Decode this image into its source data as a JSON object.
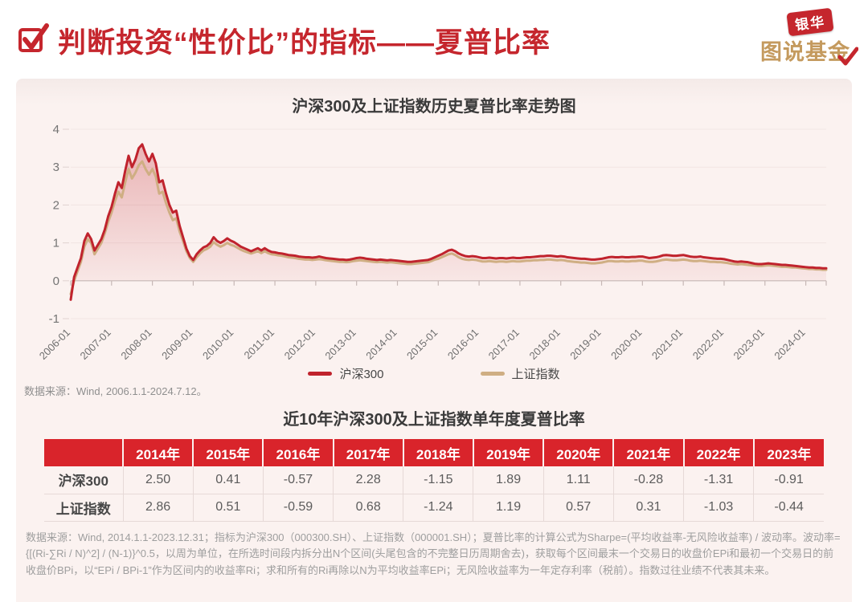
{
  "header": {
    "title": "判断投资“性价比”的指标——夏普比率",
    "logo": {
      "top": "银华",
      "bottom": "图说基金"
    }
  },
  "colors": {
    "accent_red": "#c5262d",
    "table_header_red": "#d9242b",
    "line_red": "#c0232d",
    "line_tan": "#cfae83",
    "panel_bg": "#fbf2f0",
    "logo_gold": "#c49a5e",
    "grid": "#f1e5e3",
    "axis": "#c6b7b5"
  },
  "chart": {
    "title": "沪深300及上证指数历史夏普比率走势图",
    "source": "数据来源：Wind, 2006.1.1-2024.7.12。",
    "legend": [
      {
        "label": "沪深300",
        "color": "#c0232d"
      },
      {
        "label": "上证指数",
        "color": "#cfae83"
      }
    ]
  },
  "chart_data": [
    {
      "type": "line",
      "title": "沪深300及上证指数历史夏普比率走势图",
      "xlabel": "",
      "ylabel": "",
      "x_unit": "month",
      "x_range": [
        "2006-01",
        "2024-07"
      ],
      "x_tick_labels": [
        "2006-01",
        "2007-01",
        "2008-01",
        "2009-01",
        "2010-01",
        "2011-01",
        "2012-01",
        "2013-01",
        "2014-01",
        "2015-01",
        "2016-01",
        "2017-01",
        "2018-01",
        "2019-01",
        "2020-01",
        "2021-01",
        "2022-01",
        "2023-01",
        "2024-01"
      ],
      "ylim": [
        -1,
        4
      ],
      "y_ticks": [
        4,
        3,
        2,
        1,
        0,
        -1
      ],
      "grid": true,
      "legend_position": "bottom",
      "series": [
        {
          "name": "沪深300",
          "color": "#c0232d",
          "area": true,
          "values": [
            -0.5,
            0.1,
            0.35,
            0.6,
            1.05,
            1.25,
            1.1,
            0.8,
            0.95,
            1.1,
            1.35,
            1.7,
            1.95,
            2.3,
            2.6,
            2.45,
            2.9,
            3.3,
            3.0,
            3.2,
            3.5,
            3.6,
            3.35,
            3.15,
            3.35,
            3.1,
            2.6,
            2.65,
            2.3,
            2.0,
            1.8,
            1.85,
            1.45,
            1.15,
            0.85,
            0.65,
            0.55,
            0.7,
            0.8,
            0.88,
            0.92,
            1.0,
            1.15,
            1.05,
            1.0,
            1.05,
            1.12,
            1.06,
            1.02,
            0.96,
            0.9,
            0.86,
            0.82,
            0.78,
            0.82,
            0.86,
            0.8,
            0.86,
            0.8,
            0.76,
            0.75,
            0.73,
            0.72,
            0.7,
            0.68,
            0.67,
            0.66,
            0.64,
            0.63,
            0.62,
            0.62,
            0.61,
            0.62,
            0.64,
            0.62,
            0.6,
            0.59,
            0.58,
            0.57,
            0.56,
            0.56,
            0.55,
            0.56,
            0.58,
            0.6,
            0.61,
            0.6,
            0.58,
            0.57,
            0.56,
            0.55,
            0.56,
            0.55,
            0.54,
            0.55,
            0.54,
            0.53,
            0.52,
            0.51,
            0.5,
            0.5,
            0.51,
            0.52,
            0.53,
            0.54,
            0.55,
            0.58,
            0.62,
            0.66,
            0.7,
            0.75,
            0.8,
            0.82,
            0.78,
            0.72,
            0.68,
            0.65,
            0.64,
            0.65,
            0.64,
            0.62,
            0.6,
            0.6,
            0.61,
            0.6,
            0.59,
            0.6,
            0.6,
            0.59,
            0.6,
            0.61,
            0.6,
            0.6,
            0.61,
            0.62,
            0.62,
            0.63,
            0.64,
            0.65,
            0.65,
            0.66,
            0.66,
            0.65,
            0.64,
            0.65,
            0.64,
            0.62,
            0.61,
            0.6,
            0.59,
            0.58,
            0.58,
            0.57,
            0.56,
            0.56,
            0.57,
            0.58,
            0.6,
            0.62,
            0.63,
            0.62,
            0.62,
            0.63,
            0.62,
            0.62,
            0.63,
            0.63,
            0.64,
            0.64,
            0.62,
            0.6,
            0.61,
            0.62,
            0.64,
            0.67,
            0.68,
            0.67,
            0.66,
            0.66,
            0.67,
            0.68,
            0.66,
            0.64,
            0.63,
            0.63,
            0.64,
            0.62,
            0.61,
            0.6,
            0.59,
            0.58,
            0.58,
            0.57,
            0.55,
            0.53,
            0.51,
            0.5,
            0.51,
            0.5,
            0.49,
            0.47,
            0.45,
            0.44,
            0.44,
            0.45,
            0.46,
            0.45,
            0.44,
            0.43,
            0.42,
            0.42,
            0.41,
            0.4,
            0.39,
            0.38,
            0.37,
            0.36,
            0.35,
            0.35,
            0.34,
            0.34,
            0.33,
            0.33
          ]
        },
        {
          "name": "上证指数",
          "color": "#cfae83",
          "area": false,
          "values": [
            -0.35,
            0.0,
            0.25,
            0.5,
            0.9,
            1.1,
            1.0,
            0.7,
            0.85,
            1.0,
            1.25,
            1.55,
            1.8,
            2.1,
            2.35,
            2.2,
            2.6,
            2.95,
            2.7,
            2.85,
            3.05,
            3.15,
            2.95,
            2.8,
            2.95,
            2.75,
            2.3,
            2.35,
            2.05,
            1.8,
            1.6,
            1.65,
            1.3,
            1.05,
            0.78,
            0.6,
            0.5,
            0.62,
            0.72,
            0.8,
            0.84,
            0.9,
            1.02,
            0.95,
            0.9,
            0.94,
            1.0,
            0.95,
            0.92,
            0.87,
            0.82,
            0.78,
            0.75,
            0.72,
            0.75,
            0.78,
            0.73,
            0.78,
            0.73,
            0.7,
            0.69,
            0.67,
            0.66,
            0.64,
            0.62,
            0.61,
            0.6,
            0.58,
            0.57,
            0.56,
            0.56,
            0.55,
            0.56,
            0.57,
            0.56,
            0.54,
            0.53,
            0.52,
            0.51,
            0.5,
            0.5,
            0.49,
            0.5,
            0.52,
            0.53,
            0.54,
            0.53,
            0.52,
            0.51,
            0.5,
            0.49,
            0.5,
            0.49,
            0.48,
            0.49,
            0.48,
            0.47,
            0.46,
            0.45,
            0.44,
            0.44,
            0.45,
            0.46,
            0.47,
            0.48,
            0.49,
            0.52,
            0.56,
            0.58,
            0.62,
            0.66,
            0.7,
            0.72,
            0.68,
            0.62,
            0.58,
            0.56,
            0.55,
            0.56,
            0.55,
            0.53,
            0.51,
            0.51,
            0.52,
            0.51,
            0.5,
            0.51,
            0.51,
            0.5,
            0.51,
            0.52,
            0.51,
            0.51,
            0.52,
            0.53,
            0.53,
            0.54,
            0.54,
            0.55,
            0.55,
            0.56,
            0.56,
            0.55,
            0.54,
            0.55,
            0.54,
            0.52,
            0.51,
            0.5,
            0.49,
            0.48,
            0.48,
            0.47,
            0.46,
            0.46,
            0.47,
            0.48,
            0.5,
            0.52,
            0.52,
            0.51,
            0.51,
            0.52,
            0.51,
            0.51,
            0.52,
            0.52,
            0.53,
            0.53,
            0.51,
            0.5,
            0.5,
            0.51,
            0.53,
            0.55,
            0.56,
            0.55,
            0.54,
            0.54,
            0.55,
            0.56,
            0.55,
            0.53,
            0.52,
            0.52,
            0.53,
            0.52,
            0.51,
            0.5,
            0.5,
            0.49,
            0.49,
            0.48,
            0.47,
            0.45,
            0.44,
            0.43,
            0.44,
            0.43,
            0.42,
            0.41,
            0.4,
            0.39,
            0.39,
            0.4,
            0.41,
            0.4,
            0.39,
            0.38,
            0.37,
            0.37,
            0.36,
            0.35,
            0.35,
            0.34,
            0.33,
            0.32,
            0.31,
            0.31,
            0.3,
            0.3,
            0.29,
            0.29
          ]
        }
      ]
    },
    {
      "type": "table",
      "title": "近10年沪深300及上证指数单年度夏普比率",
      "categories": [
        "2014年",
        "2015年",
        "2016年",
        "2017年",
        "2018年",
        "2019年",
        "2020年",
        "2021年",
        "2022年",
        "2023年"
      ],
      "series": [
        {
          "name": "沪深300",
          "values": [
            2.5,
            0.41,
            -0.57,
            2.28,
            -1.15,
            1.89,
            1.11,
            -0.28,
            -1.31,
            -0.91
          ]
        },
        {
          "name": "上证指数",
          "values": [
            2.86,
            0.51,
            -0.59,
            0.68,
            -1.24,
            1.19,
            0.57,
            0.31,
            -1.03,
            -0.44
          ]
        }
      ]
    }
  ],
  "table": {
    "title": "近10年沪深300及上证指数单年度夏普比率",
    "columns": [
      "2014年",
      "2015年",
      "2016年",
      "2017年",
      "2018年",
      "2019年",
      "2020年",
      "2021年",
      "2022年",
      "2023年"
    ],
    "rows": [
      {
        "label": "沪深300",
        "values": [
          "2.50",
          "0.41",
          "-0.57",
          "2.28",
          "-1.15",
          "1.89",
          "1.11",
          "-0.28",
          "-1.31",
          "-0.91"
        ]
      },
      {
        "label": "上证指数",
        "values": [
          "2.86",
          "0.51",
          "-0.59",
          "0.68",
          "-1.24",
          "1.19",
          "0.57",
          "0.31",
          "-1.03",
          "-0.44"
        ]
      }
    ]
  },
  "footnote": "数据来源：Wind, 2014.1.1-2023.12.31；指标为沪深300（000300.SH）、上证指数（000001.SH）；夏普比率的计算公式为Sharpe=(平均收益率-无风险收益率) / 波动率。波动率={[(Ri-∑Ri / N)^2] / (N-1)}^0.5，以周为单位，在所选时间段内拆分出N个区间(头尾包含的不完整日历周期舍去)，获取每个区间最末一个交易日的收盘价EPi和最初一个交易日的前收盘价BPi，以“EPi / BPi-1”作为区间内的收益率Ri；求和所有的Ri再除以N为平均收益率EPi；无风险收益率为一年定存利率（税前）。指数过往业绩不代表其未来。"
}
